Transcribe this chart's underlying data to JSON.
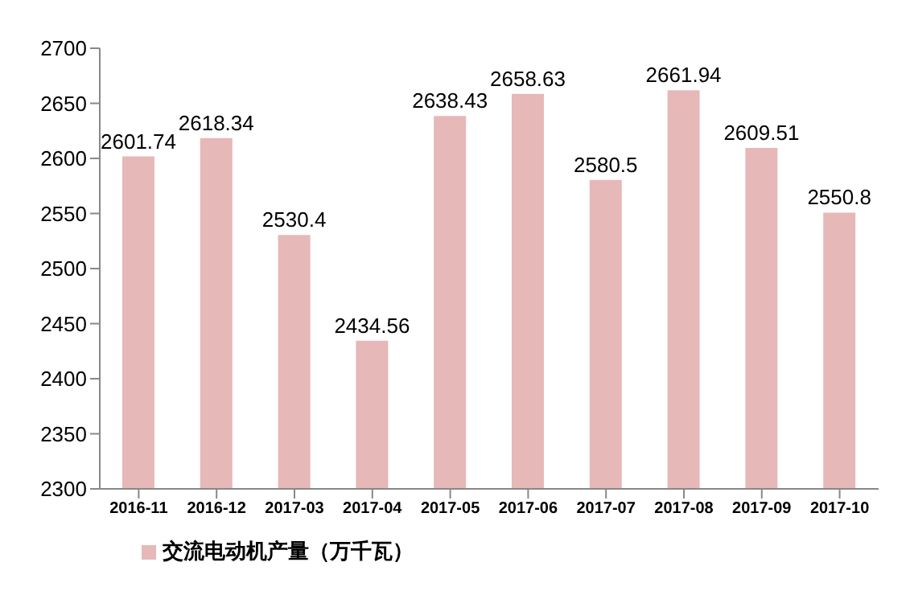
{
  "chart_data": {
    "type": "bar",
    "categories": [
      "2016-11",
      "2016-12",
      "2017-03",
      "2017-04",
      "2017-05",
      "2017-06",
      "2017-07",
      "2017-08",
      "2017-09",
      "2017-10"
    ],
    "series": [
      {
        "name": "交流电动机产量（万千瓦）",
        "color": "#e6b8b7",
        "values": [
          2601.74,
          2618.34,
          2530.4,
          2434.56,
          2638.43,
          2658.63,
          2580.5,
          2661.94,
          2609.51,
          2550.8
        ]
      }
    ],
    "ylim": [
      2300,
      2700
    ],
    "yticks": [
      2300,
      2350,
      2400,
      2450,
      2500,
      2550,
      2600,
      2650,
      2700
    ],
    "grid": false,
    "legend": "bottom left",
    "data_labels": true
  }
}
